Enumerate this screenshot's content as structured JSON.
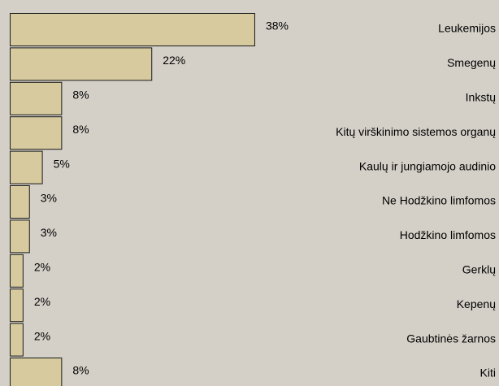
{
  "chart_data": {
    "type": "bar",
    "orientation": "horizontal",
    "categories": [
      "Leukemijos",
      "Smegenų",
      "Inkstų",
      "Kitų virškinimo sistemos organų",
      "Kaulų ir jungiamojo audinio",
      "Ne Hodžkino limfomos",
      "Hodžkino limfomos",
      "Gerklų",
      "Kepenų",
      "Gaubtinės žarnos",
      "Kiti"
    ],
    "values": [
      38,
      22,
      8,
      8,
      5,
      3,
      3,
      2,
      2,
      2,
      8
    ],
    "value_labels": [
      "38%",
      "22%",
      "8%",
      "8%",
      "5%",
      "3%",
      "3%",
      "2%",
      "2%",
      "2%",
      "8%"
    ],
    "color": "#d6ca9e"
  }
}
